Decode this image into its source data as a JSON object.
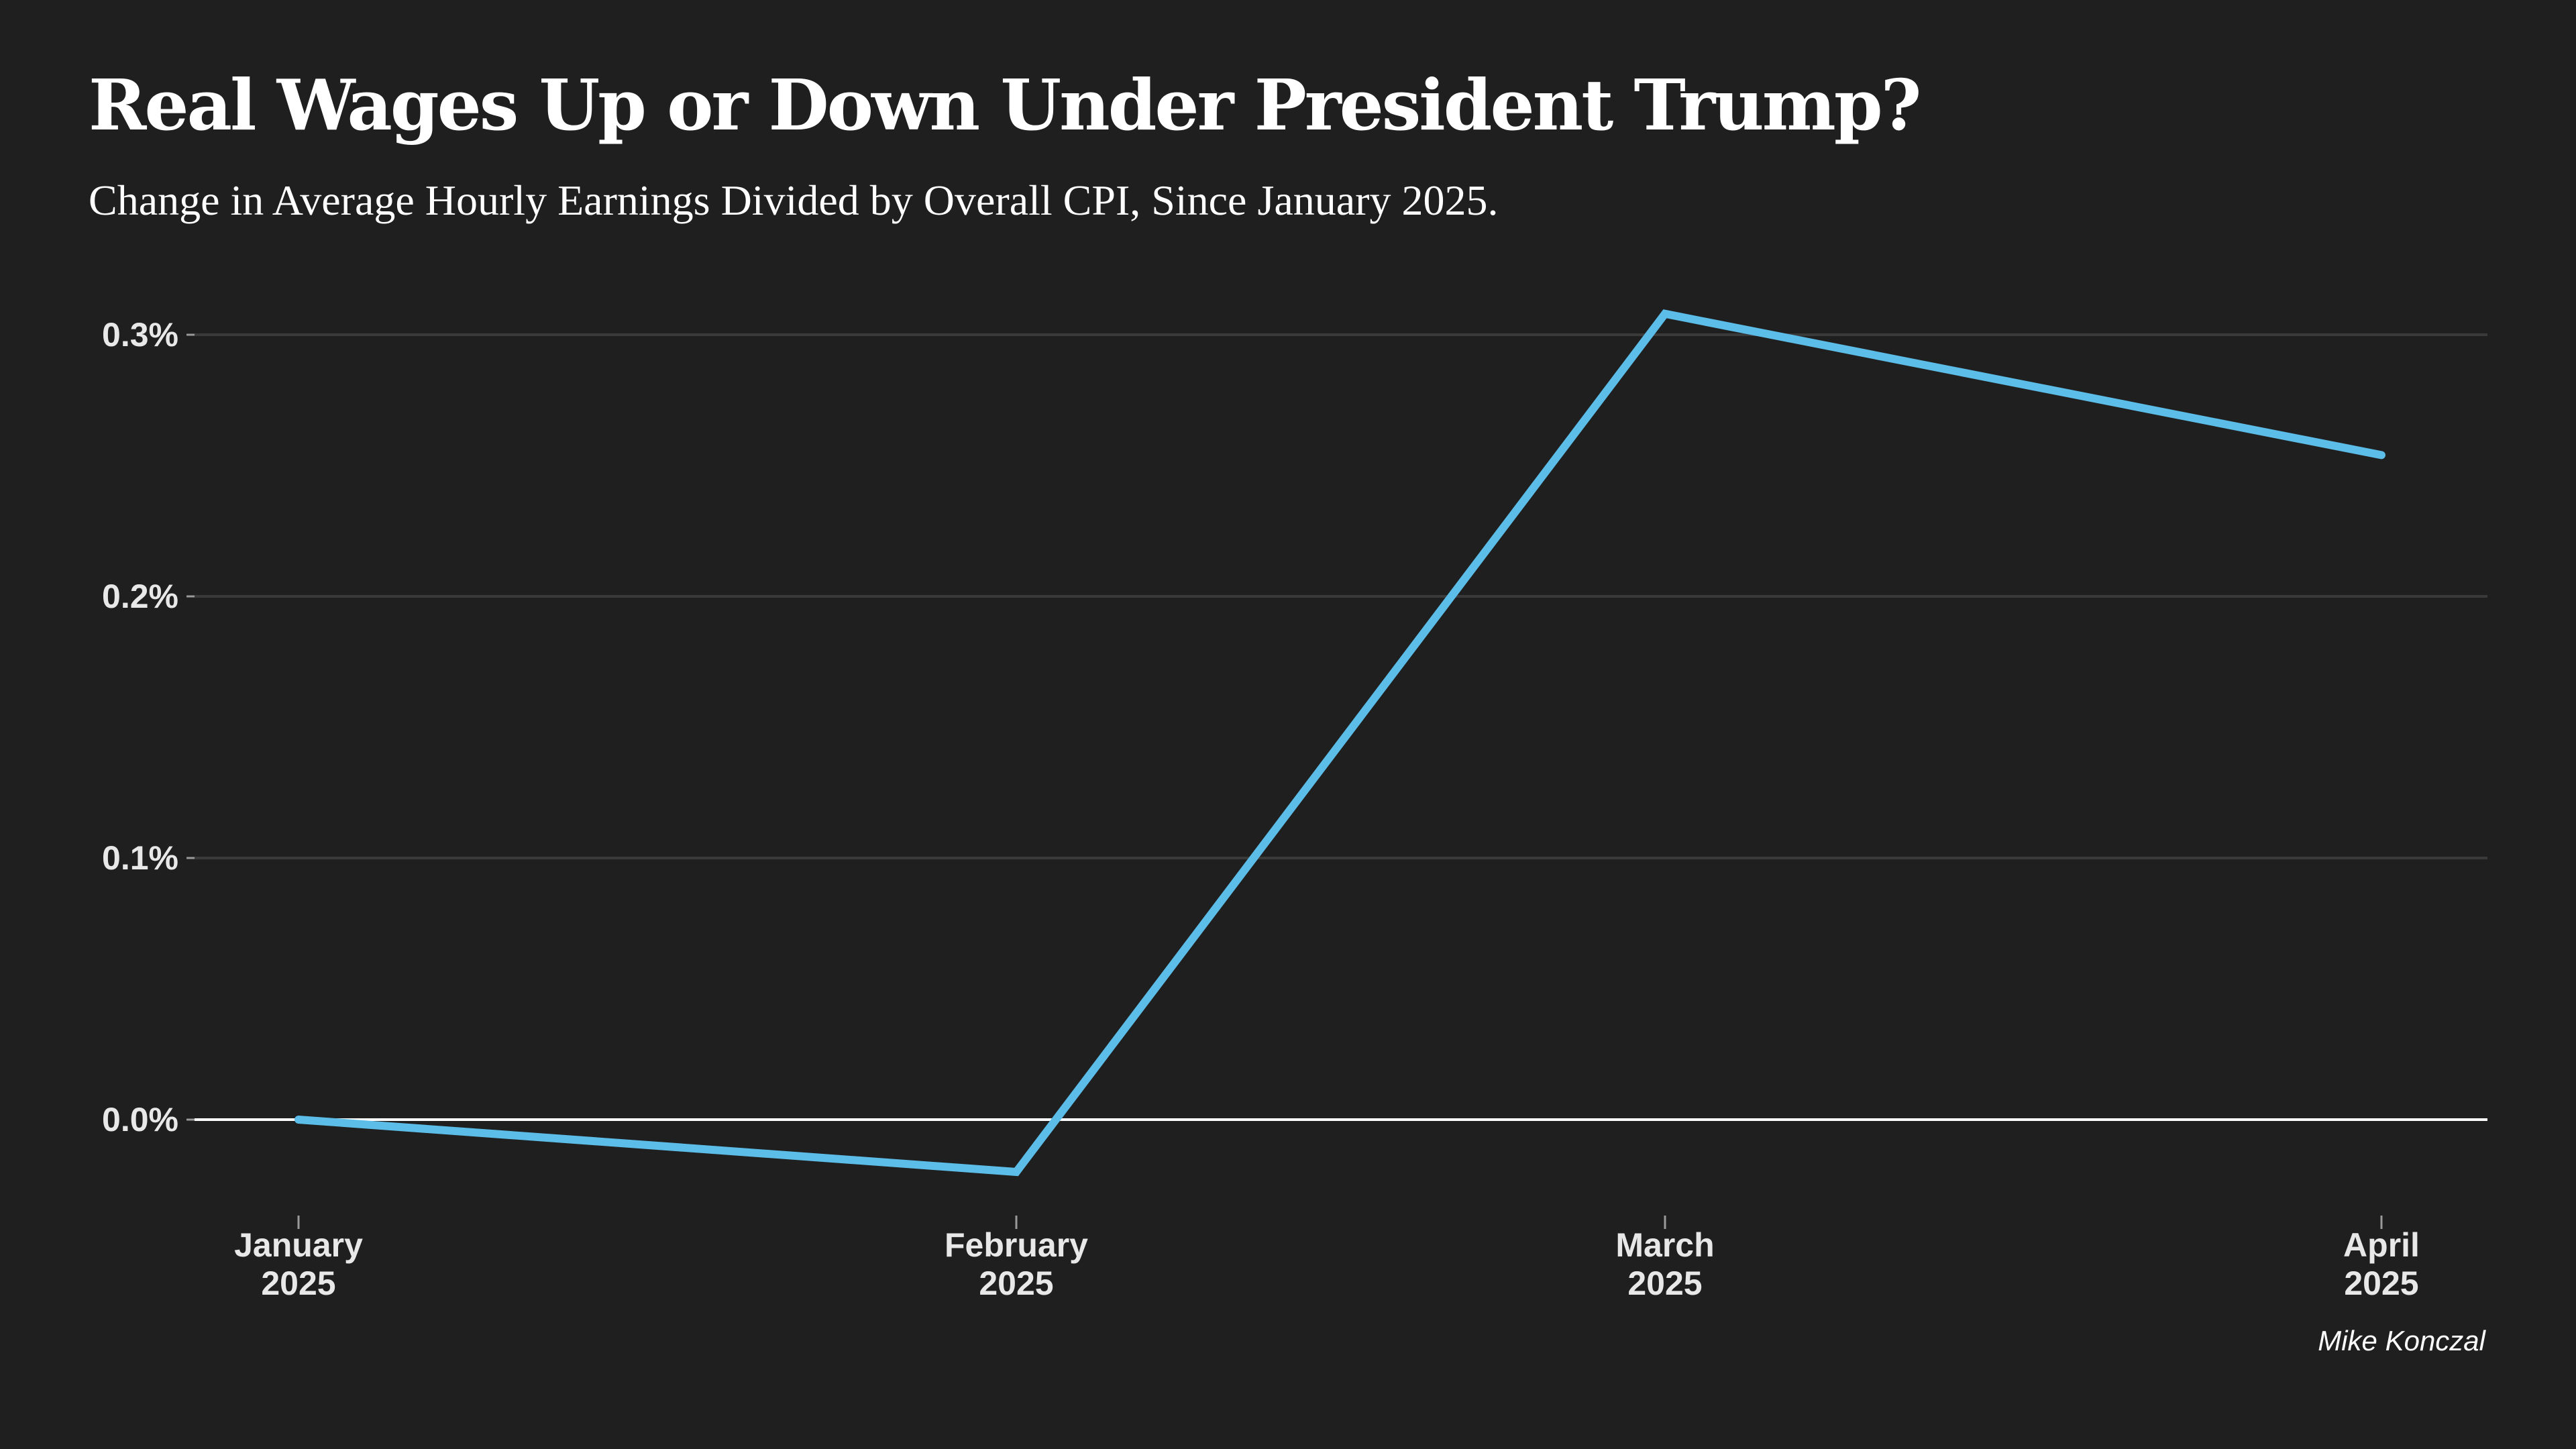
{
  "header": {
    "title": "Real Wages Up or Down Under President Trump?",
    "subtitle": "Change in Average Hourly Earnings Divided by Overall CPI, Since January 2025."
  },
  "footer": {
    "credit": "Mike Konczal"
  },
  "colors": {
    "background": "#1f1f1f",
    "line": "#5bbde8",
    "gridline": "#3a3a3a",
    "zero_line": "#ffffff",
    "text": "#ffffff"
  },
  "chart_data": {
    "type": "line",
    "title": "Real Wages Up or Down Under President Trump?",
    "subtitle": "Change in Average Hourly Earnings Divided by Overall CPI, Since January 2025.",
    "xlabel": "",
    "ylabel": "",
    "x": [
      "January 2025",
      "February 2025",
      "March 2025",
      "April 2025"
    ],
    "x_tick_labels": [
      [
        "January",
        "2025"
      ],
      [
        "February",
        "2025"
      ],
      [
        "March",
        "2025"
      ],
      [
        "April",
        "2025"
      ]
    ],
    "series": [
      {
        "values": [
          0.0,
          -0.02,
          0.308,
          0.254
        ]
      }
    ],
    "y_ticks": [
      0.0,
      0.1,
      0.2,
      0.3
    ],
    "y_tick_labels": [
      "0.0%",
      "0.1%",
      "0.2%",
      "0.3%"
    ],
    "ylim": [
      -0.04,
      0.31
    ],
    "grid": true,
    "legend": "none"
  }
}
